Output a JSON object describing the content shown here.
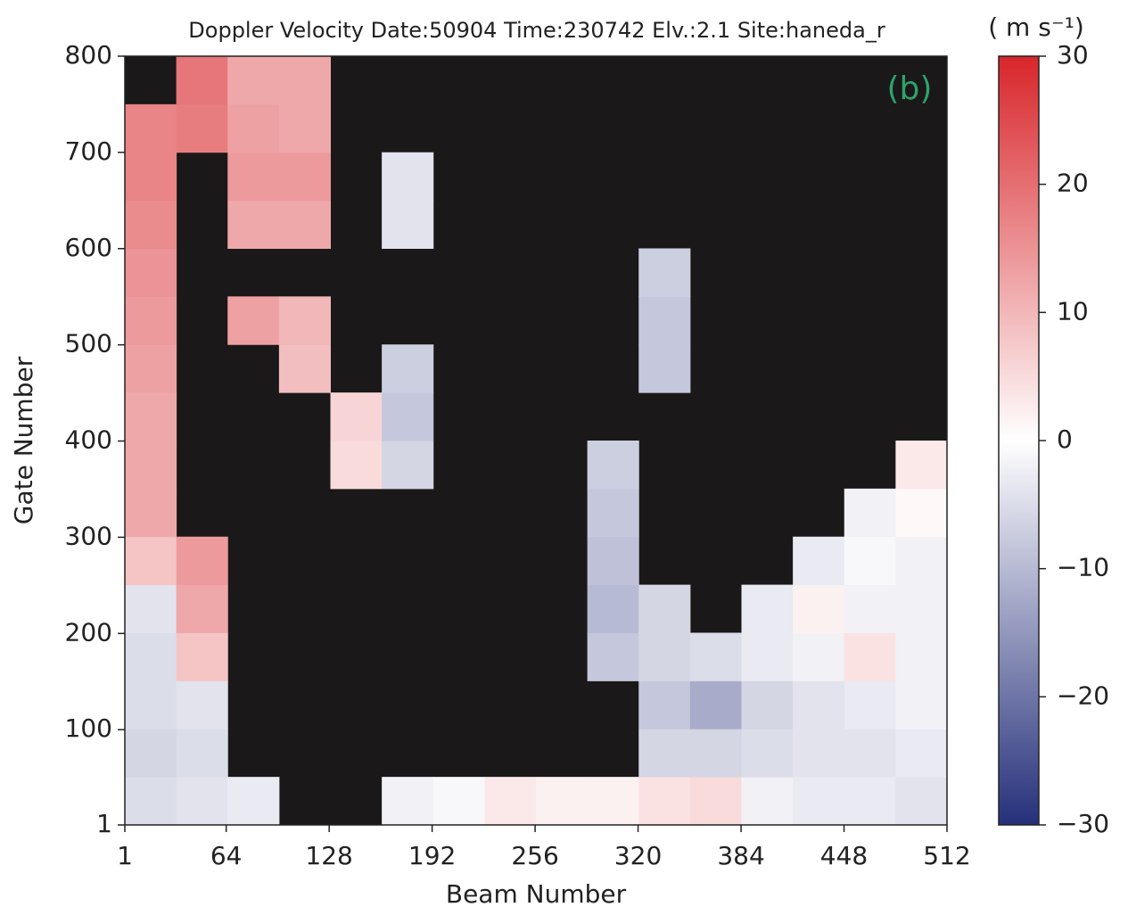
{
  "chart_data": {
    "type": "heatmap",
    "title": "Doppler Velocity  Date:50904 Time:230742 Elv.:2.1 Site:haneda_r",
    "panel_label": "(b)",
    "panel_label_color": "#2ea36a",
    "x_label": "Beam Number",
    "y_label": "Gate Number",
    "colorbar_label": "( m s⁻¹)",
    "xlim": [
      1,
      512
    ],
    "xticks": [
      1,
      64,
      128,
      192,
      256,
      320,
      384,
      448,
      512
    ],
    "ylim": [
      1,
      800
    ],
    "yticks": [
      1,
      100,
      200,
      300,
      400,
      500,
      600,
      700,
      800
    ],
    "clim": [
      -30,
      30
    ],
    "cticks": [
      {
        "value": -30,
        "label": "−30"
      },
      {
        "value": -20,
        "label": "−20"
      },
      {
        "value": -10,
        "label": "−10"
      },
      0,
      10,
      20,
      30
    ],
    "colors": [
      "#26307a",
      "#ffffff",
      "#d8262b"
    ],
    "background": "#1a1818",
    "values": [
      [
        -5,
        -4,
        -3,
        null,
        null,
        -2,
        -1,
        3,
        2,
        2,
        4,
        5,
        -2,
        -3,
        -3,
        -4
      ],
      [
        -6,
        -5,
        null,
        null,
        null,
        null,
        null,
        null,
        null,
        null,
        -6,
        -6,
        -5,
        -4,
        -4,
        -3
      ],
      [
        -5,
        -4,
        null,
        null,
        null,
        null,
        null,
        null,
        null,
        null,
        -8,
        -12,
        -6,
        -4,
        -3,
        -2
      ],
      [
        -5,
        8,
        null,
        null,
        null,
        null,
        null,
        null,
        null,
        -8,
        -6,
        -5,
        -3,
        -2,
        4,
        -2
      ],
      [
        -4,
        12,
        null,
        null,
        null,
        null,
        null,
        null,
        null,
        -10,
        -6,
        null,
        -3,
        2,
        -2,
        -2
      ],
      [
        8,
        14,
        null,
        null,
        null,
        null,
        null,
        null,
        null,
        -9,
        null,
        null,
        null,
        -3,
        -1,
        -2
      ],
      [
        12,
        null,
        null,
        null,
        null,
        null,
        null,
        null,
        null,
        -8,
        null,
        null,
        null,
        null,
        -2,
        1
      ],
      [
        12,
        null,
        null,
        null,
        5,
        -6,
        null,
        null,
        null,
        -7,
        null,
        null,
        null,
        null,
        null,
        3
      ],
      [
        12,
        null,
        null,
        null,
        6,
        -8,
        null,
        null,
        null,
        null,
        null,
        null,
        null,
        null,
        null,
        null
      ],
      [
        13,
        null,
        null,
        9,
        null,
        -7,
        null,
        null,
        null,
        null,
        -8,
        null,
        null,
        null,
        null,
        null
      ],
      [
        14,
        null,
        13,
        10,
        null,
        null,
        null,
        null,
        null,
        null,
        -8,
        null,
        null,
        null,
        null,
        null
      ],
      [
        15,
        null,
        null,
        null,
        null,
        null,
        null,
        null,
        null,
        null,
        -7,
        null,
        null,
        null,
        null,
        null
      ],
      [
        16,
        null,
        12,
        12,
        null,
        -4,
        null,
        null,
        null,
        null,
        null,
        null,
        null,
        null,
        null,
        null
      ],
      [
        17,
        null,
        14,
        14,
        null,
        -4,
        null,
        null,
        null,
        null,
        null,
        null,
        null,
        null,
        null,
        null
      ],
      [
        17,
        18,
        13,
        12,
        null,
        null,
        null,
        null,
        null,
        null,
        null,
        null,
        null,
        null,
        null,
        null
      ],
      [
        null,
        19,
        12,
        12,
        null,
        null,
        null,
        null,
        null,
        null,
        null,
        null,
        null,
        null,
        null,
        null
      ]
    ]
  }
}
